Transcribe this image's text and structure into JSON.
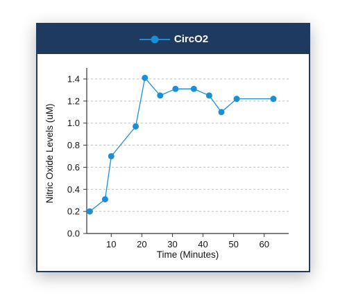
{
  "chart_data": {
    "type": "line",
    "legend_placement": "top-center",
    "grid": "horizontal-dashed",
    "series": [
      {
        "name": "CircO2",
        "color": "#1a8fd8",
        "points": [
          {
            "x": 3,
            "y": 0.2
          },
          {
            "x": 8,
            "y": 0.31
          },
          {
            "x": 10,
            "y": 0.7
          },
          {
            "x": 18,
            "y": 0.97
          },
          {
            "x": 21,
            "y": 1.41
          },
          {
            "x": 26,
            "y": 1.25
          },
          {
            "x": 31,
            "y": 1.31
          },
          {
            "x": 37,
            "y": 1.31
          },
          {
            "x": 42,
            "y": 1.25
          },
          {
            "x": 46,
            "y": 1.1
          },
          {
            "x": 51,
            "y": 1.22
          },
          {
            "x": 63,
            "y": 1.22
          }
        ]
      }
    ],
    "xlabel": "Time (Minutes)",
    "ylabel": "Nitric Oxide Levels (uM)",
    "xlim": [
      2,
      68
    ],
    "ylim": [
      0,
      1.45
    ],
    "xticks": [
      10,
      20,
      30,
      40,
      50,
      60
    ],
    "yticks": [
      0.0,
      0.2,
      0.4,
      0.6,
      0.8,
      1.0,
      1.2,
      1.4
    ],
    "ytick_labels": [
      "0.0",
      "0.2",
      "0.4",
      "0.6",
      "0.8",
      "1.0",
      "1.2",
      "1.4"
    ]
  }
}
